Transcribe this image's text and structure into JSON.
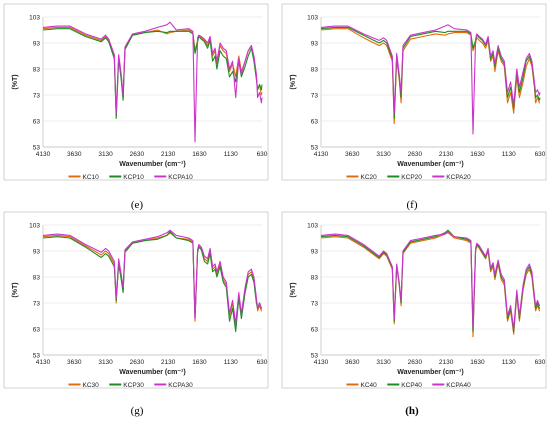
{
  "chart_data": [
    {
      "type": "line",
      "caption": "(e)",
      "xlabel": "Wavenumber (cm⁻¹)",
      "ylabel": "(%T)",
      "xlim": [
        4130,
        630
      ],
      "ylim": [
        53,
        103
      ],
      "xticks": [
        4130,
        3630,
        3130,
        2630,
        2130,
        1630,
        1130,
        630
      ],
      "yticks": [
        53,
        63,
        73,
        83,
        93,
        103
      ],
      "grid": true,
      "legend_position": "bottom",
      "x": [
        4130,
        3900,
        3700,
        3450,
        3200,
        3130,
        3080,
        2990,
        2960,
        2920,
        2880,
        2850,
        2820,
        2700,
        2500,
        2300,
        2150,
        2100,
        2000,
        1800,
        1735,
        1700,
        1660,
        1640,
        1600,
        1550,
        1500,
        1460,
        1420,
        1380,
        1350,
        1300,
        1250,
        1200,
        1150,
        1100,
        1050,
        1000,
        960,
        900,
        850,
        800,
        760,
        720,
        700,
        670,
        640,
        630
      ],
      "series": [
        {
          "name": "KC10",
          "color": "#E36C0A",
          "values": [
            98.5,
            99,
            99,
            96,
            94,
            95.5,
            94,
            88,
            65,
            88,
            80,
            72,
            91,
            96,
            97,
            98,
            96.5,
            97,
            97.5,
            98,
            97,
            90,
            94,
            96,
            95,
            94,
            92,
            95,
            88,
            90,
            85,
            92,
            90,
            89,
            82,
            85,
            80,
            88,
            82,
            86,
            90,
            92,
            87,
            80,
            75,
            77,
            73,
            74
          ]
        },
        {
          "name": "KCP10",
          "color": "#1F8B22",
          "values": [
            98,
            98.5,
            98.5,
            95.5,
            93.5,
            95,
            93.5,
            87,
            64,
            87,
            79,
            71,
            90.5,
            96,
            97,
            97.5,
            97,
            97.5,
            97.5,
            97.5,
            96.5,
            89,
            93.5,
            95.5,
            94.5,
            93.5,
            91,
            94,
            86,
            88,
            83,
            90,
            88,
            87,
            80,
            82,
            78,
            86,
            80,
            84,
            88,
            91,
            86,
            79,
            75,
            77,
            75,
            77
          ]
        },
        {
          "name": "KCPA10",
          "color": "#CC33CC",
          "values": [
            99,
            99.5,
            99.5,
            96.5,
            94.5,
            96,
            94.5,
            88.5,
            66,
            88.5,
            81,
            73,
            91.5,
            96.5,
            97.5,
            99,
            100,
            101,
            98,
            98.5,
            97.5,
            55,
            95,
            96,
            95.5,
            94.5,
            93,
            95.5,
            89,
            91,
            86,
            93,
            91,
            90,
            83,
            86,
            72,
            87,
            81,
            86,
            90,
            92,
            88,
            81,
            72,
            74,
            70,
            72
          ]
        }
      ]
    },
    {
      "type": "line",
      "caption": "(f)",
      "xlabel": "Wavenumber (cm⁻¹)",
      "ylabel": "(%T)",
      "xlim": [
        4130,
        630
      ],
      "ylim": [
        53,
        103
      ],
      "xticks": [
        4130,
        3630,
        3130,
        2630,
        2130,
        1630,
        1130,
        630
      ],
      "yticks": [
        53,
        63,
        73,
        83,
        93,
        103
      ],
      "grid": true,
      "legend_position": "bottom",
      "x": [
        4130,
        3900,
        3700,
        3450,
        3200,
        3130,
        3080,
        2990,
        2960,
        2920,
        2880,
        2850,
        2820,
        2700,
        2500,
        2300,
        2150,
        2100,
        2000,
        1800,
        1735,
        1700,
        1660,
        1640,
        1600,
        1550,
        1500,
        1460,
        1420,
        1380,
        1350,
        1300,
        1250,
        1200,
        1150,
        1100,
        1050,
        1000,
        960,
        900,
        850,
        800,
        760,
        720,
        700,
        670,
        640,
        630
      ],
      "series": [
        {
          "name": "KC20",
          "color": "#E36C0A",
          "values": [
            98,
            98.5,
            98.5,
            95,
            92,
            93,
            92,
            86,
            62,
            87,
            79,
            70,
            90,
            94.5,
            95.5,
            96.5,
            96,
            96.5,
            97,
            97,
            96,
            90,
            93,
            95,
            94,
            93,
            91,
            94,
            86,
            88,
            82,
            90,
            86,
            84,
            70,
            74,
            66,
            80,
            72,
            78,
            84,
            87,
            84,
            76,
            70,
            72,
            70,
            70
          ]
        },
        {
          "name": "KCP20",
          "color": "#1F8B22",
          "values": [
            98.5,
            99,
            99,
            96,
            93,
            94,
            93,
            87,
            64,
            88,
            80,
            72,
            91,
            95.5,
            96.5,
            97.5,
            97,
            97.5,
            97.5,
            97.5,
            96.5,
            91,
            94,
            96,
            95,
            94,
            92,
            95,
            87,
            89,
            84,
            91,
            87,
            85,
            72,
            76,
            68,
            82,
            74,
            80,
            86,
            88,
            85,
            77,
            72,
            73,
            71,
            72
          ]
        },
        {
          "name": "KCPA20",
          "color": "#CC33CC",
          "values": [
            99,
            99.5,
            99.5,
            96.5,
            94,
            95,
            94,
            88,
            66,
            89,
            81,
            74,
            92,
            96,
            97,
            98,
            99.5,
            100,
            98.5,
            98,
            97,
            58,
            94.5,
            96.5,
            95.5,
            94.5,
            92.5,
            95.5,
            88,
            90,
            85,
            92,
            88,
            86,
            74,
            78,
            69,
            83,
            76,
            82,
            87,
            89,
            86,
            78,
            74,
            75,
            73,
            74
          ]
        }
      ]
    },
    {
      "type": "line",
      "caption": "(g)",
      "xlabel": "Wavenumber (cm⁻¹)",
      "ylabel": "(%T)",
      "xlim": [
        4130,
        630
      ],
      "ylim": [
        53,
        103
      ],
      "xticks": [
        4130,
        3630,
        3130,
        2630,
        2130,
        1630,
        1130,
        630
      ],
      "yticks": [
        53,
        63,
        73,
        83,
        93,
        103
      ],
      "grid": true,
      "legend_position": "bottom",
      "x": [
        4130,
        3900,
        3700,
        3450,
        3200,
        3130,
        3080,
        2990,
        2960,
        2920,
        2880,
        2850,
        2820,
        2700,
        2500,
        2300,
        2150,
        2100,
        2000,
        1800,
        1735,
        1700,
        1660,
        1640,
        1600,
        1550,
        1500,
        1460,
        1420,
        1380,
        1350,
        1300,
        1250,
        1200,
        1150,
        1100,
        1050,
        1000,
        960,
        900,
        850,
        800,
        760,
        720,
        700,
        670,
        640,
        630
      ],
      "series": [
        {
          "name": "KC30",
          "color": "#E36C0A",
          "values": [
            98.5,
            99,
            98.5,
            95,
            91.5,
            93,
            92,
            88,
            73,
            89,
            83,
            78,
            93,
            96,
            97,
            98,
            99,
            100,
            98,
            97.5,
            96.5,
            66,
            93,
            95,
            94,
            90,
            89,
            93,
            86,
            87,
            84,
            88,
            82,
            80,
            68,
            73,
            64,
            76,
            68,
            78,
            84,
            85,
            82,
            74,
            70,
            72,
            70,
            70
          ]
        },
        {
          "name": "KCP30",
          "color": "#1F8B22",
          "values": [
            98,
            98.5,
            98,
            94.5,
            90.5,
            92,
            91,
            87,
            74,
            88,
            82,
            77,
            92.5,
            96,
            97,
            97.5,
            99,
            100.5,
            98,
            97,
            96,
            67,
            92.5,
            94.5,
            93.5,
            89,
            88,
            92,
            85,
            86,
            83,
            87,
            81,
            79,
            66,
            71,
            62,
            75,
            67,
            77,
            83,
            84,
            81,
            73,
            71,
            73,
            71,
            71
          ]
        },
        {
          "name": "KCPA30",
          "color": "#CC33CC",
          "values": [
            99,
            99.5,
            99,
            95.5,
            92.5,
            94,
            93,
            89,
            75,
            90,
            84,
            79,
            93.5,
            96.5,
            97.5,
            98.5,
            100,
            101,
            99,
            98,
            97,
            67,
            93.5,
            95.5,
            94.5,
            91,
            90,
            94,
            87,
            88,
            85,
            89,
            83,
            81,
            69,
            74,
            65,
            77,
            69,
            79,
            85,
            86,
            83,
            75,
            71,
            73,
            71,
            71
          ]
        }
      ]
    },
    {
      "type": "line",
      "caption": "(h)",
      "xlabel": "Wavenumber (cm⁻¹)",
      "ylabel": "(%T)",
      "xlim": [
        4130,
        630
      ],
      "ylim": [
        53,
        103
      ],
      "xticks": [
        4130,
        3630,
        3130,
        2630,
        2130,
        1630,
        1130,
        630
      ],
      "yticks": [
        53,
        63,
        73,
        83,
        93,
        103
      ],
      "grid": true,
      "legend_position": "bottom",
      "x": [
        4130,
        3900,
        3700,
        3450,
        3200,
        3130,
        3080,
        2990,
        2960,
        2920,
        2880,
        2850,
        2820,
        2700,
        2500,
        2300,
        2150,
        2100,
        2000,
        1800,
        1735,
        1700,
        1660,
        1640,
        1600,
        1550,
        1500,
        1460,
        1420,
        1380,
        1350,
        1300,
        1250,
        1200,
        1150,
        1100,
        1050,
        1000,
        960,
        900,
        850,
        800,
        760,
        720,
        700,
        670,
        640,
        630
      ],
      "series": [
        {
          "name": "KC40",
          "color": "#E36C0A",
          "values": [
            98,
            98.5,
            98,
            94.5,
            90,
            92,
            91,
            86,
            65,
            87,
            80,
            72,
            92,
            96,
            97,
            98,
            99.5,
            100,
            98,
            97,
            96,
            60,
            93,
            95,
            94,
            92,
            90,
            93,
            85,
            87,
            82,
            88,
            82,
            80,
            66,
            70,
            61,
            76,
            66,
            78,
            84,
            86,
            83,
            74,
            70,
            72,
            70,
            70
          ]
        },
        {
          "name": "KCP40",
          "color": "#1F8B22",
          "values": [
            98.5,
            99,
            98.5,
            95,
            90.5,
            92.5,
            91.5,
            86.5,
            66,
            87.5,
            80.5,
            73,
            92.5,
            96.5,
            97.5,
            98.5,
            100,
            101,
            98.5,
            97.5,
            96.5,
            62,
            93.5,
            95.5,
            94.5,
            92.5,
            90.5,
            93.5,
            86,
            88,
            83,
            89,
            83,
            81,
            67,
            71,
            62,
            77,
            67,
            79,
            85,
            87,
            84,
            75,
            71,
            73,
            71,
            71
          ]
        },
        {
          "name": "KCPA40",
          "color": "#CC33CC",
          "values": [
            99,
            99.5,
            99,
            95.5,
            91,
            93,
            92,
            87,
            67,
            88,
            81,
            74,
            93,
            97,
            98,
            99,
            99.5,
            100.5,
            98.5,
            98,
            97,
            64,
            94,
            96,
            95,
            93,
            91,
            94,
            86.5,
            88.5,
            84,
            89.5,
            84,
            82,
            68,
            72,
            63,
            78,
            68,
            80,
            86,
            88,
            85,
            76,
            72,
            74,
            72,
            72
          ]
        }
      ]
    }
  ]
}
